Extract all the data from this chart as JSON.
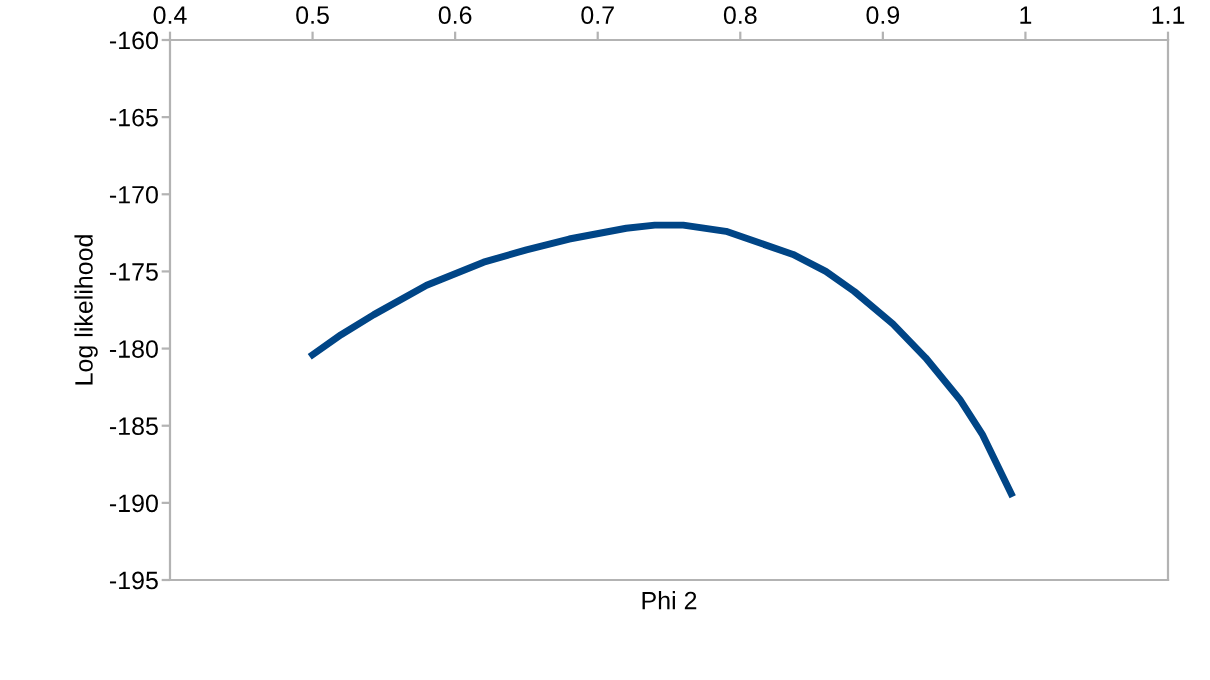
{
  "chart_data": {
    "type": "line",
    "xlabel": "Phi 2",
    "ylabel": "Log likelihood",
    "series": [
      {
        "color": "#004586",
        "x": [
          0.5,
          0.52,
          0.543,
          0.58,
          0.62,
          0.65,
          0.68,
          0.72,
          0.74,
          0.76,
          0.79,
          0.837,
          0.86,
          0.88,
          0.907,
          0.93,
          0.954,
          0.97,
          0.99
        ],
        "values": [
          -180.4,
          -179.1,
          -177.8,
          -175.9,
          -174.4,
          -173.6,
          -172.9,
          -172.2,
          -172.0,
          -172.0,
          -172.4,
          -173.9,
          -175.0,
          -176.3,
          -178.4,
          -180.6,
          -183.3,
          -185.6,
          -189.4
        ]
      }
    ],
    "xlim": [
      0.4,
      1.1
    ],
    "xticks": [
      0.4,
      0.5,
      0.6,
      0.7,
      0.8,
      0.9,
      1,
      1.1
    ],
    "ylim": [
      -195,
      -160
    ],
    "yticks": [
      -195,
      -190,
      -185,
      -180,
      -175,
      -170,
      -165,
      -160
    ],
    "grid": false,
    "marker": "none",
    "line_style": "solid"
  }
}
